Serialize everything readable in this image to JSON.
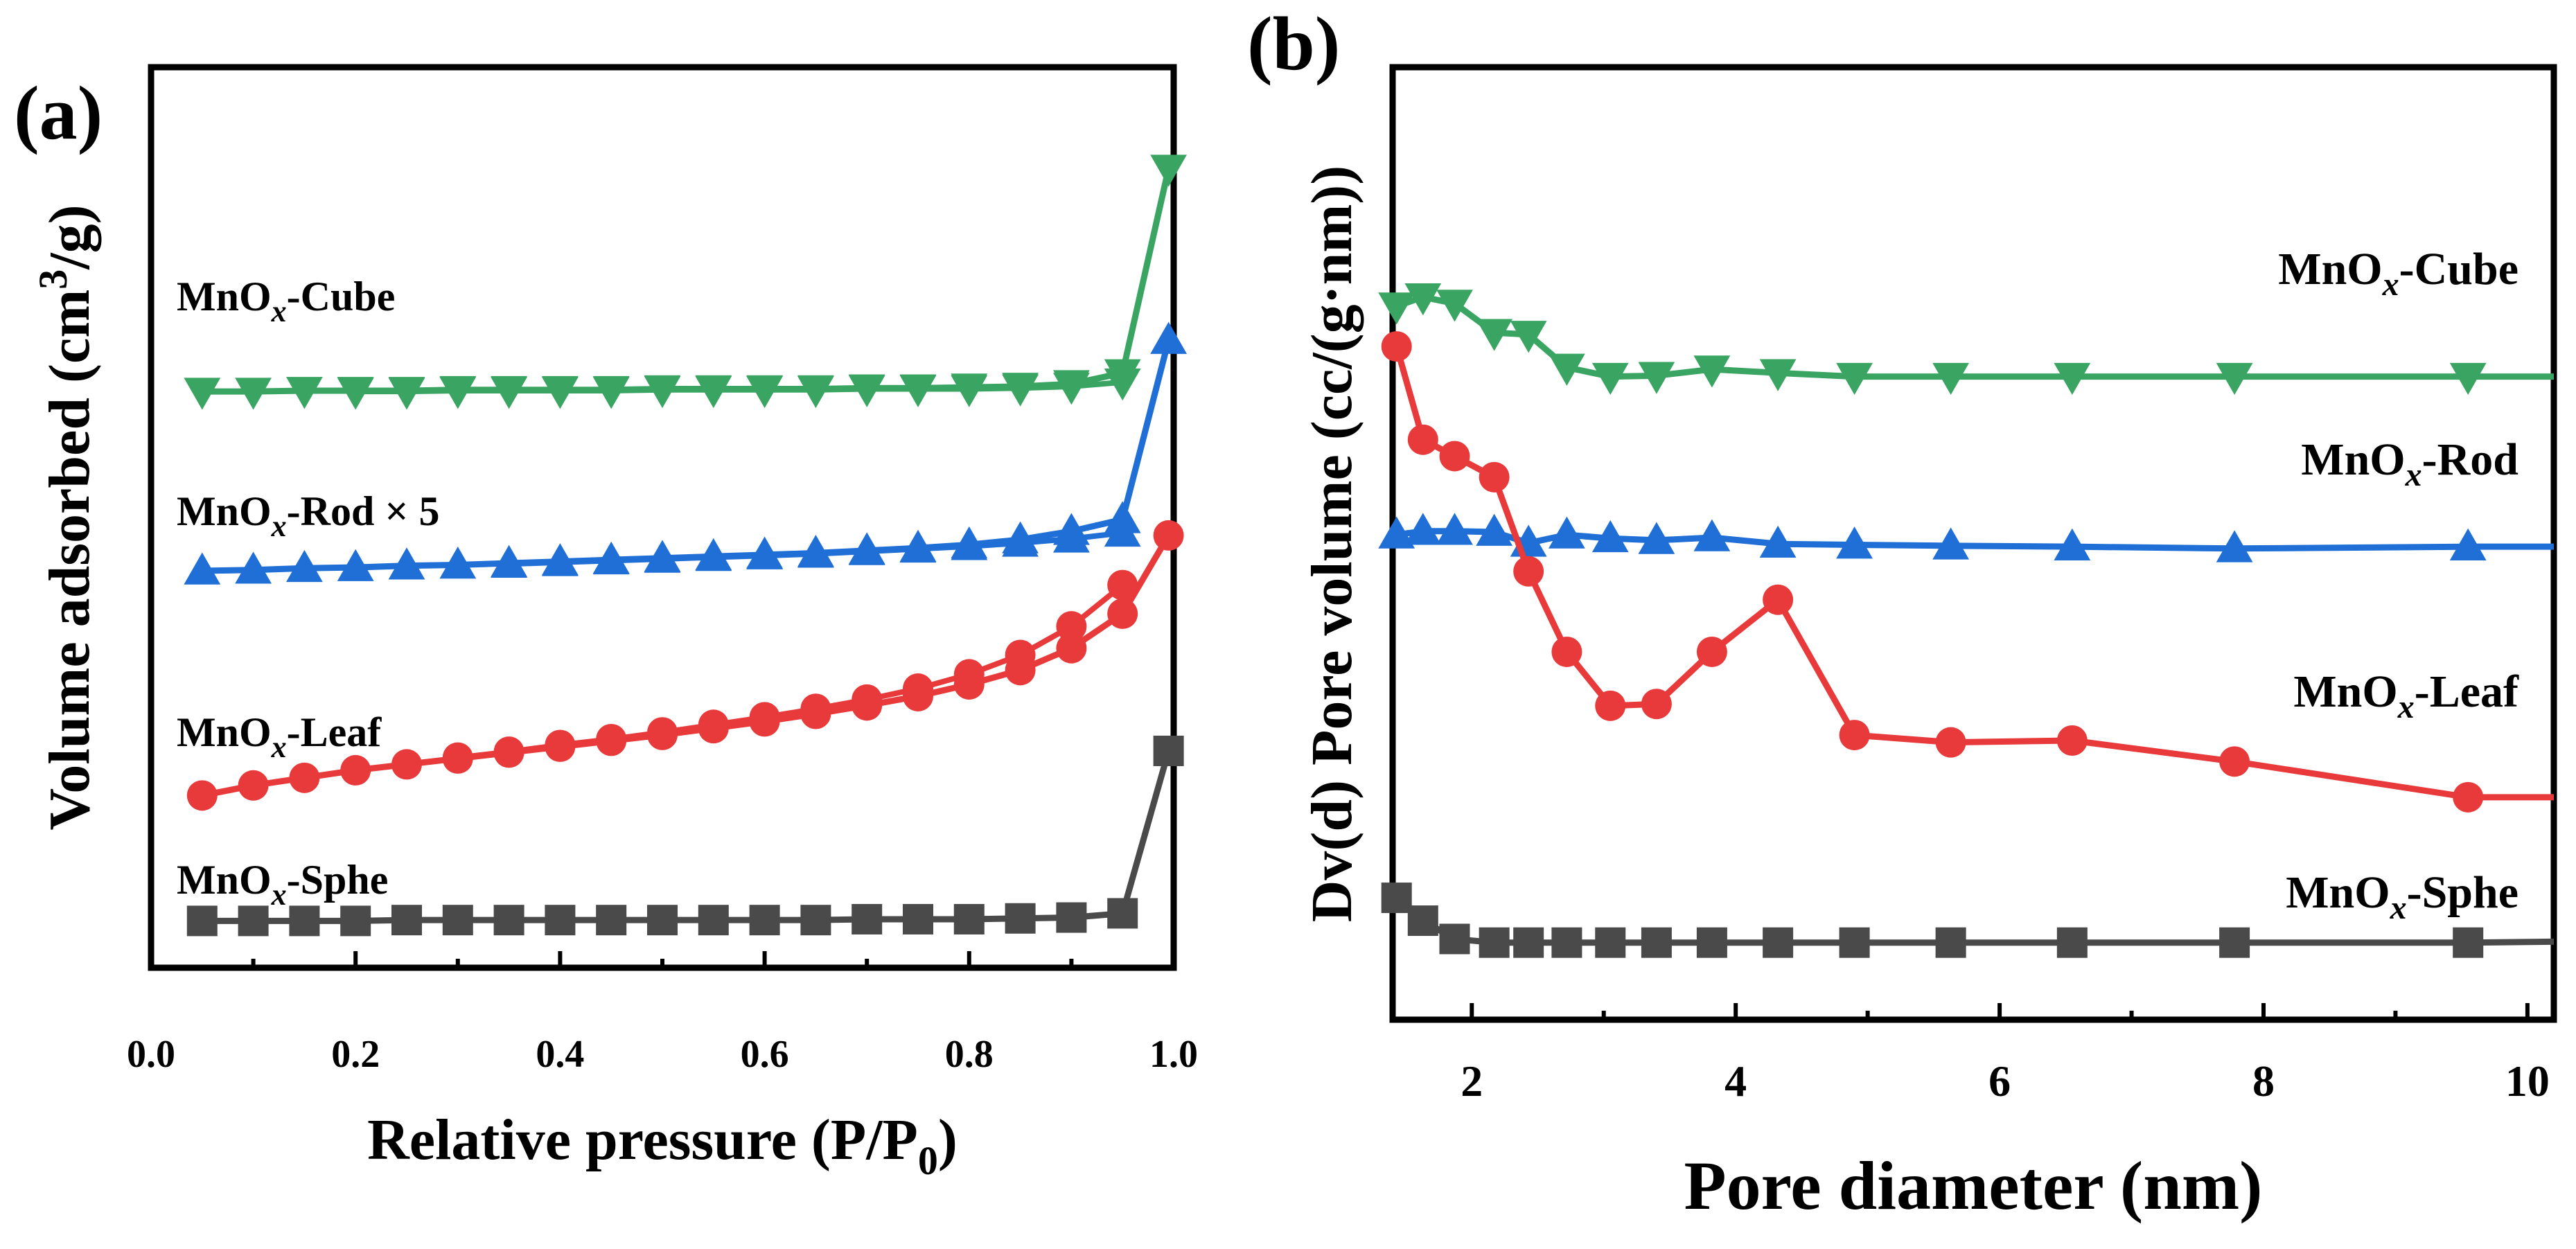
{
  "chart_data": [
    {
      "panel": "(a)",
      "type": "line",
      "xlabel_main": "Relative pressure (P/P",
      "xlabel_sub": "0",
      "xlabel_end": ")",
      "ylabel_main": "Volume adsorbed (cm",
      "ylabel_sup": "3",
      "ylabel_end": "/g)",
      "xlim": [
        0.0,
        1.0
      ],
      "ylim": [
        0,
        100
      ],
      "xticks": [
        "0.0",
        "0.2",
        "0.4",
        "0.6",
        "0.8",
        "1.0"
      ],
      "xtick_values": [
        0.0,
        0.2,
        0.4,
        0.6,
        0.8,
        1.0
      ],
      "yticks_shown": false,
      "series": [
        {
          "name": "MnOx-Cube",
          "label_main": "MnO",
          "label_sub": "x",
          "label_end": "-Cube",
          "color": "#3aa562",
          "marker": "triangle-down",
          "x": [
            0.05,
            0.1,
            0.15,
            0.2,
            0.25,
            0.3,
            0.35,
            0.4,
            0.45,
            0.5,
            0.55,
            0.6,
            0.65,
            0.7,
            0.75,
            0.8,
            0.85,
            0.9,
            0.95,
            0.995
          ],
          "y": [
            68.3,
            68.3,
            68.4,
            68.4,
            68.4,
            68.5,
            68.5,
            68.5,
            68.5,
            68.6,
            68.6,
            68.6,
            68.6,
            68.7,
            68.7,
            68.8,
            68.9,
            69.2,
            70.5,
            94.8
          ],
          "desorption_x": [
            0.95,
            0.9,
            0.85,
            0.8,
            0.75,
            0.7,
            0.65,
            0.6,
            0.55,
            0.5,
            0.45,
            0.4,
            0.35,
            0.3,
            0.25,
            0.2
          ],
          "desorption_y": [
            69.4,
            68.9,
            68.7,
            68.6,
            68.6,
            68.6,
            68.5,
            68.5,
            68.5,
            68.5,
            68.4,
            68.4,
            68.4,
            68.4,
            68.3,
            68.3
          ]
        },
        {
          "name": "MnOx-Rod × 5",
          "label_main": "MnO",
          "label_sub": "x",
          "label_end": "-Rod × 5",
          "color": "#1f6fd6",
          "marker": "triangle-up",
          "x": [
            0.05,
            0.1,
            0.15,
            0.2,
            0.25,
            0.3,
            0.35,
            0.4,
            0.45,
            0.5,
            0.55,
            0.6,
            0.65,
            0.7,
            0.75,
            0.8,
            0.85,
            0.9,
            0.95,
            0.995
          ],
          "y": [
            47.0,
            47.1,
            47.3,
            47.4,
            47.6,
            47.7,
            47.9,
            48.1,
            48.3,
            48.5,
            48.7,
            48.9,
            49.1,
            49.4,
            49.7,
            50.1,
            50.7,
            51.7,
            53.1,
            74.4
          ],
          "desorption_x": [
            0.95,
            0.9,
            0.85,
            0.8,
            0.75,
            0.7,
            0.65,
            0.6,
            0.55,
            0.5,
            0.45,
            0.4,
            0.35
          ],
          "desorption_y": [
            51.5,
            50.8,
            50.3,
            49.9,
            49.6,
            49.3,
            49.0,
            48.8,
            48.6,
            48.4,
            48.2,
            48.0,
            47.8
          ]
        },
        {
          "name": "MnOx-Leaf",
          "label_main": "MnO",
          "label_sub": "x",
          "label_end": "-Leaf",
          "color": "#e83a3a",
          "marker": "circle",
          "x": [
            0.05,
            0.1,
            0.15,
            0.2,
            0.25,
            0.3,
            0.35,
            0.4,
            0.45,
            0.5,
            0.55,
            0.6,
            0.65,
            0.7,
            0.75,
            0.8,
            0.85,
            0.9,
            0.95,
            0.995
          ],
          "y": [
            20.3,
            21.5,
            22.4,
            23.3,
            24.0,
            24.7,
            25.4,
            26.1,
            26.8,
            27.5,
            28.3,
            29.1,
            30.0,
            31.0,
            32.1,
            33.5,
            35.2,
            37.8,
            41.9,
            51.2
          ],
          "desorption_x": [
            0.95,
            0.9,
            0.85,
            0.8,
            0.75,
            0.7,
            0.65,
            0.6,
            0.55,
            0.5,
            0.45,
            0.4,
            0.35,
            0.3
          ],
          "desorption_y": [
            45.3,
            40.4,
            37.0,
            34.7,
            33.0,
            31.7,
            30.6,
            29.6,
            28.7,
            27.8,
            27.0,
            26.3,
            25.5,
            24.8
          ]
        },
        {
          "name": "MnOx-Sphe",
          "label_main": "MnO",
          "label_sub": "x",
          "label_end": "-Sphe",
          "color": "#4a4a4a",
          "marker": "square",
          "x": [
            0.05,
            0.1,
            0.15,
            0.2,
            0.25,
            0.3,
            0.35,
            0.4,
            0.45,
            0.5,
            0.55,
            0.6,
            0.65,
            0.7,
            0.75,
            0.8,
            0.85,
            0.9,
            0.95,
            0.995
          ],
          "y": [
            5.4,
            5.4,
            5.4,
            5.4,
            5.5,
            5.5,
            5.5,
            5.5,
            5.5,
            5.5,
            5.5,
            5.5,
            5.5,
            5.6,
            5.6,
            5.6,
            5.7,
            5.8,
            6.3,
            25.6
          ]
        }
      ]
    },
    {
      "panel": "(b)",
      "type": "line",
      "xlabel": "Pore diameter (nm)",
      "ylabel": "Dv(d) Pore volume (cc/(g·nm))",
      "xlim": [
        1.4,
        10.2
      ],
      "ylim": [
        0,
        100
      ],
      "xticks": [
        "2",
        "4",
        "6",
        "8",
        "10"
      ],
      "xtick_values": [
        2,
        4,
        6,
        8,
        10
      ],
      "yticks_shown": false,
      "series": [
        {
          "name": "MnOx-Cube",
          "label_main": "MnO",
          "label_sub": "x",
          "label_end": "-Cube",
          "color": "#3aa562",
          "marker": "triangle-down",
          "x": [
            1.43,
            1.63,
            1.87,
            2.17,
            2.43,
            2.72,
            3.05,
            3.4,
            3.82,
            4.32,
            4.9,
            5.63,
            6.55,
            7.78,
            9.55,
            10.2
          ],
          "y": [
            77.5,
            78.5,
            77.8,
            74.6,
            74.4,
            70.8,
            69.8,
            69.9,
            70.6,
            70.2,
            69.8,
            69.8,
            69.8,
            69.8,
            69.8,
            69.8
          ]
        },
        {
          "name": "MnOx-Rod",
          "label_main": "MnO",
          "label_sub": "x",
          "label_end": "-Rod",
          "color": "#1f6fd6",
          "marker": "triangle-up",
          "x": [
            1.43,
            1.63,
            1.87,
            2.17,
            2.43,
            2.72,
            3.05,
            3.4,
            3.82,
            4.32,
            4.9,
            5.63,
            6.55,
            7.78,
            9.55,
            10.2
          ],
          "y": [
            52.5,
            52.9,
            52.9,
            52.8,
            51.6,
            52.5,
            52.1,
            51.9,
            52.2,
            51.5,
            51.4,
            51.3,
            51.2,
            51.0,
            51.2,
            51.2
          ]
        },
        {
          "name": "MnOx-Leaf",
          "label_main": "MnO",
          "label_sub": "x",
          "label_end": "-Leaf",
          "color": "#e83a3a",
          "marker": "circle",
          "x": [
            1.43,
            1.63,
            1.87,
            2.17,
            2.43,
            2.72,
            3.05,
            3.4,
            3.82,
            4.32,
            4.9,
            5.63,
            6.55,
            7.78,
            9.55,
            10.2
          ],
          "y": [
            73.1,
            62.9,
            61.1,
            58.8,
            48.5,
            39.7,
            33.8,
            34.0,
            39.7,
            45.4,
            30.6,
            29.8,
            30.0,
            27.7,
            23.8,
            23.8
          ]
        },
        {
          "name": "MnOx-Sphe",
          "label_main": "MnO",
          "label_sub": "x",
          "label_end": "-Sphe",
          "color": "#4a4a4a",
          "marker": "square",
          "x": [
            1.43,
            1.63,
            1.87,
            2.17,
            2.43,
            2.72,
            3.05,
            3.4,
            3.82,
            4.32,
            4.9,
            5.63,
            6.55,
            7.78,
            9.55,
            10.2
          ],
          "y": [
            12.8,
            10.3,
            8.3,
            7.9,
            7.9,
            7.9,
            7.9,
            7.9,
            7.9,
            7.9,
            7.9,
            7.9,
            7.9,
            7.9,
            7.9,
            8.0
          ]
        }
      ]
    }
  ]
}
